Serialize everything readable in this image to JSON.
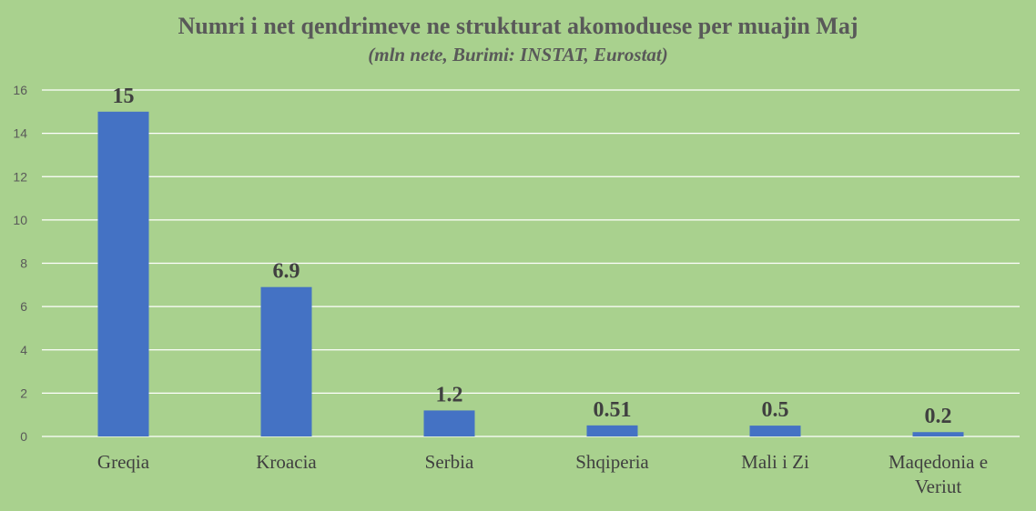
{
  "chart_data": {
    "type": "bar",
    "title": "Numri i net qendrimeve ne strukturat akomoduese per muajin Maj",
    "subtitle": "(mln nete, Burimi: INSTAT, Eurostat)",
    "categories": [
      "Greqia",
      "Kroacia",
      "Serbia",
      "Shqiperia",
      "Mali i Zi",
      "Maqedonia e Veriut"
    ],
    "values": [
      15,
      6.9,
      1.2,
      0.51,
      0.5,
      0.2
    ],
    "data_labels": [
      "15",
      "6.9",
      "1.2",
      "0.51",
      "0.5",
      "0.2"
    ],
    "xlabel": "",
    "ylabel": "",
    "ylim": [
      0,
      16
    ],
    "yticks": [
      0,
      2,
      4,
      6,
      8,
      10,
      12,
      14,
      16
    ],
    "grid": true,
    "legend": "none",
    "colors": {
      "bar": "#4472c4",
      "background": "#a9d18e",
      "grid": "#ffffff",
      "text": "#595959"
    }
  }
}
